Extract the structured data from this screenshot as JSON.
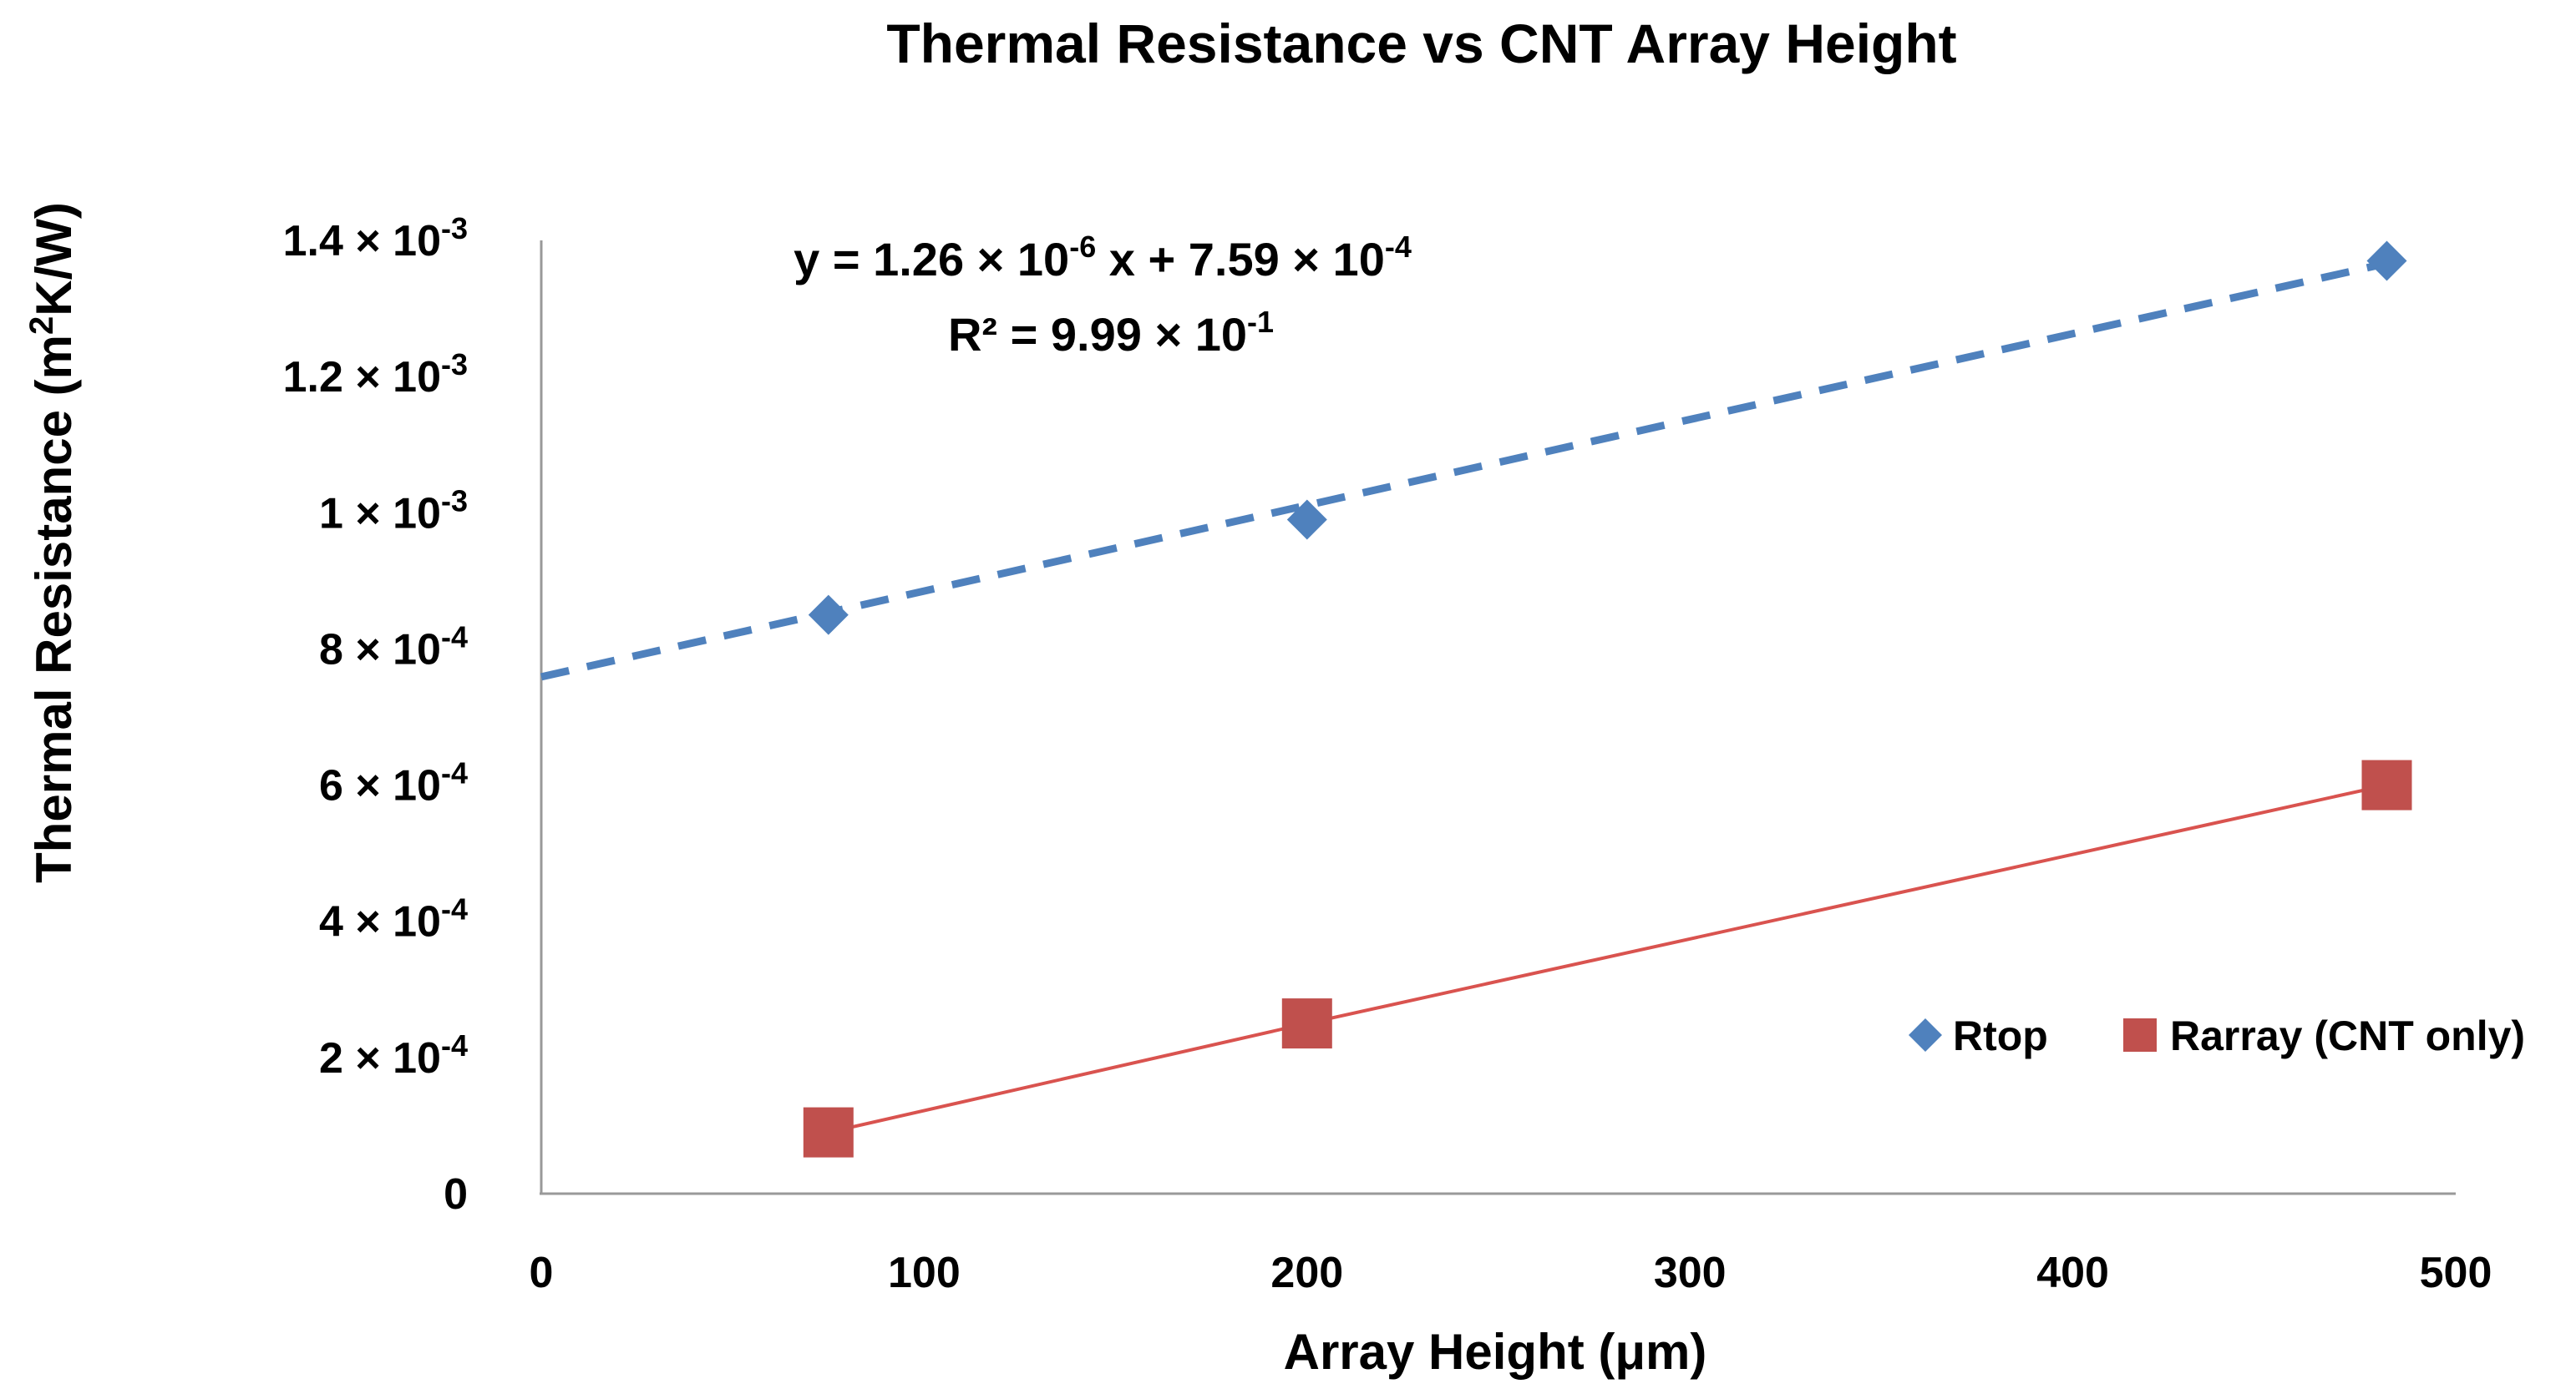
{
  "chart_data": {
    "type": "scatter",
    "title": "Thermal Resistance vs CNT Array Height",
    "xlabel": "Array Height (μm)",
    "ylabel_parts": [
      "Thermal Resistance (m",
      "2",
      "K/W)"
    ],
    "xlim": [
      0,
      500
    ],
    "ylim": [
      0,
      0.0014
    ],
    "x_ticks": [
      {
        "value": 0,
        "label": "0"
      },
      {
        "value": 100,
        "label": "100"
      },
      {
        "value": 200,
        "label": "200"
      },
      {
        "value": 300,
        "label": "300"
      },
      {
        "value": 400,
        "label": "400"
      },
      {
        "value": 500,
        "label": "500"
      }
    ],
    "y_ticks": [
      {
        "value": 0,
        "mantissa": "0",
        "exp": ""
      },
      {
        "value": 0.0002,
        "mantissa": "2 × 10",
        "exp": "-4"
      },
      {
        "value": 0.0004,
        "mantissa": "4 × 10",
        "exp": "-4"
      },
      {
        "value": 0.0006,
        "mantissa": "6 × 10",
        "exp": "-4"
      },
      {
        "value": 0.0008,
        "mantissa": "8 × 10",
        "exp": "-4"
      },
      {
        "value": 0.001,
        "mantissa": "1 × 10",
        "exp": "-3"
      },
      {
        "value": 0.0012,
        "mantissa": "1.2 × 10",
        "exp": "-3"
      },
      {
        "value": 0.0014,
        "mantissa": "1.4 × 10",
        "exp": "-3"
      }
    ],
    "series": [
      {
        "name": "Rtop",
        "marker": "diamond",
        "color": "#4F81BD",
        "x": [
          75,
          200,
          482
        ],
        "y": [
          0.00085,
          0.00099,
          0.00137
        ],
        "trendline": {
          "type": "linear",
          "style": "dashed",
          "slope": 1.26e-06,
          "intercept": 0.000759,
          "x_range": [
            0,
            482
          ]
        }
      },
      {
        "name": "Rarray (CNT only)",
        "marker": "square",
        "color": "#C0504D",
        "line_color": "#D9534F",
        "x": [
          75,
          200,
          482
        ],
        "y": [
          9e-05,
          0.00025,
          0.0006
        ],
        "connect": true
      }
    ],
    "annotation": {
      "eq_parts": [
        "y = 1.26 × 10",
        "-6",
        " x + 7.59 × 10",
        "-4"
      ],
      "r2_parts": [
        "R² = 9.99 × 10",
        "-1"
      ]
    },
    "legend": {
      "position": "bottom-right",
      "items": [
        {
          "label": "Rtop",
          "marker": "diamond"
        },
        {
          "label": "Rarray (CNT only)",
          "marker": "square"
        }
      ]
    },
    "grid": false
  }
}
